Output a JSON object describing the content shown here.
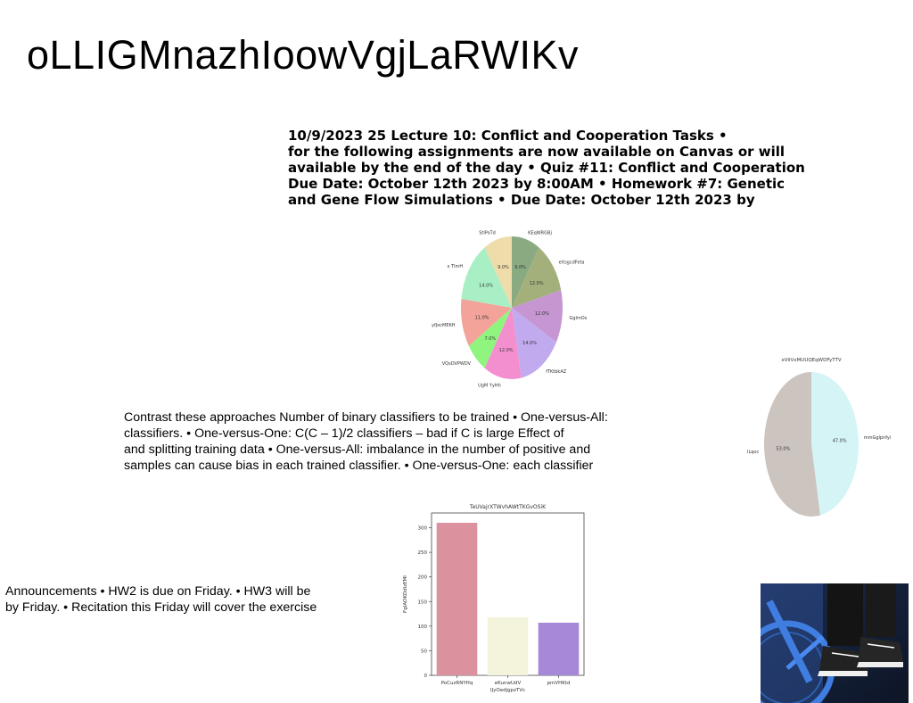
{
  "title": "oLLIGMnazhIoowVgjLaRWIKv",
  "lecture_lines": [
    "10/9/2023 25 Lecture 10: Conflict and Cooperation Tasks •",
    "for the following assignments are now available on Canvas or will",
    "available by the end of the day • Quiz #11: Conflict and Cooperation",
    "Due Date: October 12th 2023 by 8:00AM • Homework #7: Genetic",
    "and Gene Flow Simulations • Due Date: October 12th 2023 by"
  ],
  "contrast_lines": [
    "Contrast these approaches Number of binary classifiers to be trained • One-versus-All:",
    "classifiers. • One-versus-One: C(C – 1)/2 classifiers – bad if C is large Effect of",
    "and splitting training data • One-versus-All: imbalance in the number of positive and",
    "samples can cause bias in each trained classifier. • One-versus-One: each classifier"
  ],
  "announcement_lines": [
    "Announcements • HW2 is due on Friday. • HW3 will be",
    "by Friday. • Recitation this Friday will cover the exercise"
  ],
  "chart_data": [
    {
      "type": "pie",
      "title": "",
      "slices": [
        {
          "label": "KEqWRGBj",
          "value": 9.0,
          "pct_label": "9.0%",
          "color": "#8aaa82"
        },
        {
          "label": "eXsgcdFeta",
          "value": 12.0,
          "pct_label": "12.0%",
          "color": "#a3b07c"
        },
        {
          "label": "GglmOs",
          "value": 12.0,
          "pct_label": "12.0%",
          "color": "#c596d2"
        },
        {
          "label": "fTKtbkAZ",
          "value": 14.0,
          "pct_label": "14.0%",
          "color": "#c2aaee"
        },
        {
          "label": "UgM YyHh",
          "value": 12.0,
          "pct_label": "12.0%",
          "color": "#f48fcf"
        },
        {
          "label": "VQsDVPWDV",
          "value": 7.0,
          "pct_label": "7.0%",
          "color": "#8ff57e"
        },
        {
          "label": "yfJocMEKH",
          "value": 11.0,
          "pct_label": "11.0%",
          "color": "#f3a39a"
        },
        {
          "label": "x TlmH",
          "value": 14.0,
          "pct_label": "14.0%",
          "color": "#a8efc6"
        },
        {
          "label": "StlPoTd",
          "value": 9.0,
          "pct_label": "9.0%",
          "color": "#eedcaa"
        }
      ]
    },
    {
      "type": "pie",
      "title": "xVIiVxMUUQEqWDFyTTV",
      "slices": [
        {
          "label": "mmGglpnfyi",
          "value": 47.0,
          "pct_label": "47.0%",
          "color": "#d4f4f6"
        },
        {
          "label": "ILqoc",
          "value": 53.0,
          "pct_label": "53.0%",
          "color": "#ccc4bf"
        }
      ]
    },
    {
      "type": "bar",
      "title": "TeUVajrXTWvhAWtTKGvOSiK",
      "xlabel": "IJyOedjgpzTVc",
      "ylabel": "FgIAOKDdlzEMI",
      "ylim": [
        0,
        330
      ],
      "yticks": [
        0,
        50,
        100,
        150,
        200,
        250,
        300
      ],
      "categories": [
        "PoCuzRNYHq",
        "eKunwUdV",
        "pmVHKtd"
      ],
      "values": [
        310,
        118,
        107
      ],
      "colors": [
        "#dc919e",
        "#f4f4dc",
        "#a788d8"
      ]
    }
  ],
  "photo": {
    "icon": "sneakers-bicycle-photo"
  }
}
